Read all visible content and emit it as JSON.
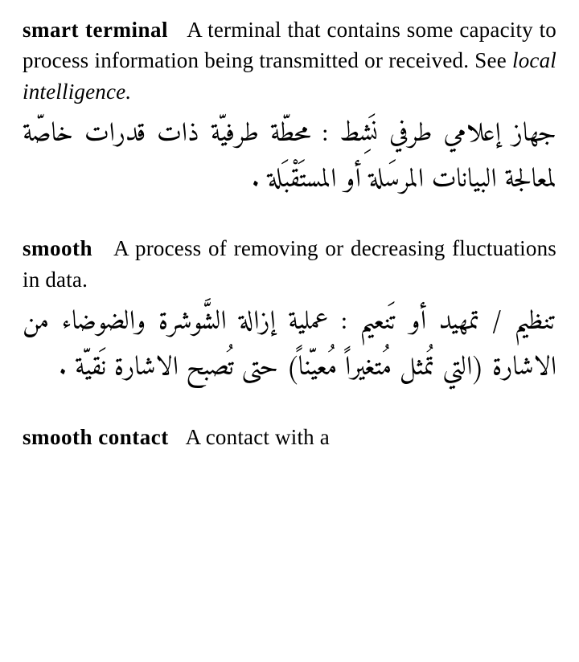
{
  "entries": [
    {
      "term": "smart terminal",
      "definition_en": "A terminal that con­tains some capacity to process information being transmitted or received. See ",
      "see_ref": "local intelligence.",
      "definition_ar": "جهاز إعلامي طرفي نَشِط : محطّة طرفيّة ذات قدرات خاصّة لمعالجة البيانات المرسَلة أو المستَقْبَلة ."
    },
    {
      "term": "smooth",
      "definition_en": "A process of removing or de­creasing fluctuations in data.",
      "see_ref": "",
      "definition_ar": "تنظيم / تمهيد أو تَنعيم : عملية إزالة الشَّوشرة والضوضاء من الاشارة (التي تُمثل مُتغيراً مُعيّناً) حتى تُصبح الاشارة نَقيّة ."
    },
    {
      "term": "smooth contact",
      "definition_en": "A contact with a",
      "see_ref": "",
      "definition_ar": ""
    }
  ],
  "styles": {
    "background_color": "#ffffff",
    "text_color": "#000000",
    "en_fontsize": 27,
    "ar_fontsize": 33,
    "term_weight": 700,
    "line_height_en": 1.42,
    "line_height_ar": 1.72
  }
}
